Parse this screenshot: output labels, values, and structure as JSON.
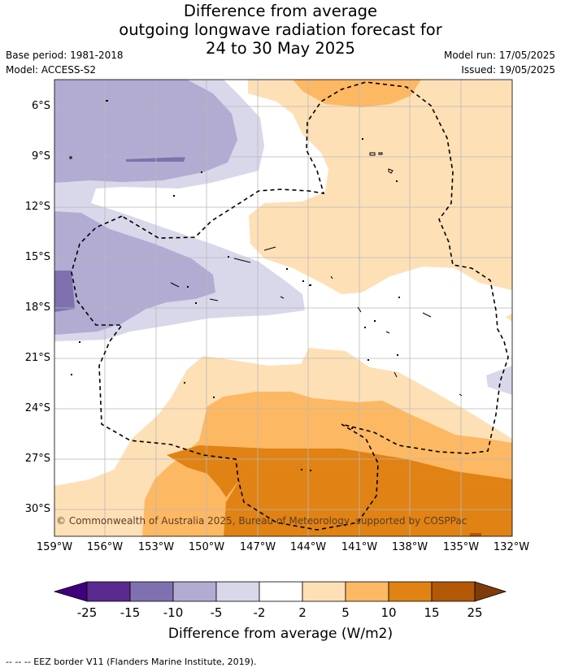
{
  "title": {
    "line1": "Difference from average",
    "line2": "outgoing longwave radiation forecast for",
    "line3": "24 to 30 May 2025"
  },
  "meta": {
    "base_period": "Base period: 1981-2018",
    "model": "Model: ACCESS-S2",
    "model_run": "Model run: 17/05/2025",
    "issued": "Issued: 19/05/2025"
  },
  "copyright": "© Commonwealth of Australia 2025, Bureau of Meteorology, supported by COSPPac",
  "axes": {
    "y_ticks": [
      "6°S",
      "9°S",
      "12°S",
      "15°S",
      "18°S",
      "21°S",
      "24°S",
      "27°S",
      "30°S"
    ],
    "x_ticks": [
      "159°W",
      "156°W",
      "153°W",
      "150°W",
      "147°W",
      "144°W",
      "141°W",
      "138°W",
      "135°W",
      "132°W"
    ]
  },
  "colorbar": {
    "labels": [
      "-25",
      "-15",
      "-10",
      "-5",
      "-2",
      "2",
      "5",
      "10",
      "15",
      "25"
    ],
    "colors": [
      "#3f007d",
      "#5a2a8e",
      "#7f71af",
      "#b2abd2",
      "#d8d8ea",
      "#ffffff",
      "#fee0b6",
      "#fdb863",
      "#e08214",
      "#b35806",
      "#7f3b08"
    ],
    "title": "Difference from average (W/m2)"
  },
  "footer": "--  --  -- EEZ border V11 (Flanders Marine Institute, 2019)."
}
